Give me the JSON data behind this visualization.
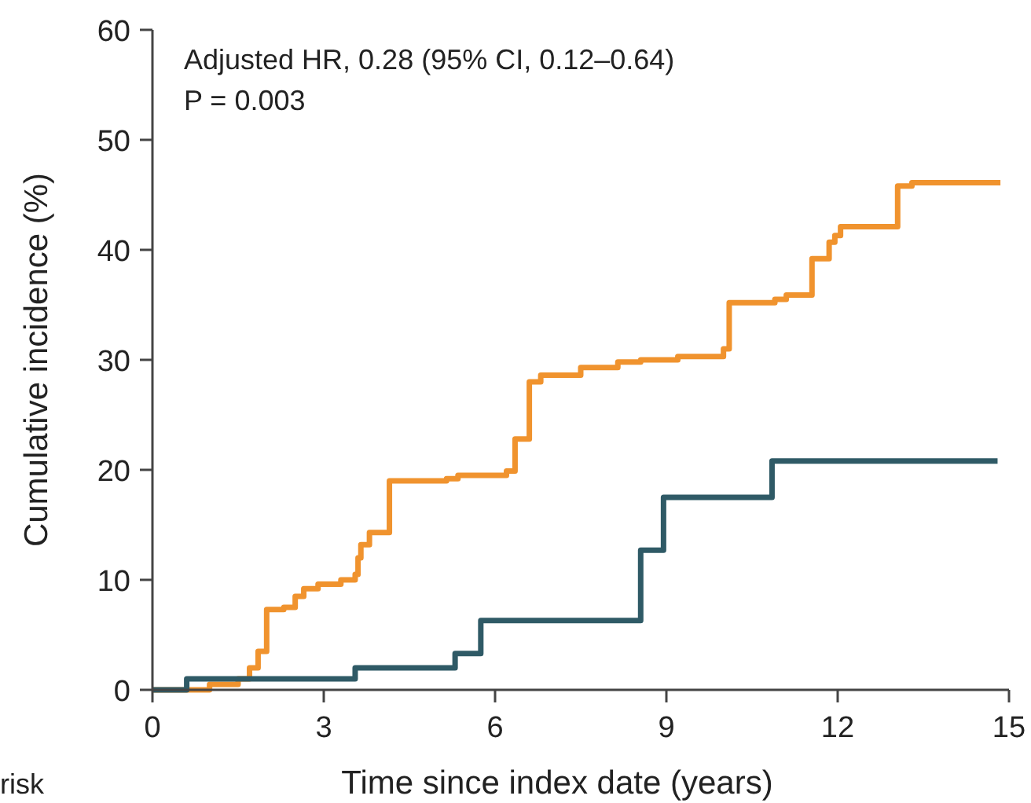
{
  "chart_data": {
    "type": "step",
    "xlabel": "Time since index date (years)",
    "ylabel": "Cumulative incidence (%)",
    "annotations": [
      "Adjusted HR, 0.28 (95% CI, 0.12–0.64)",
      "P = 0.003",
      "risk"
    ],
    "xlim": [
      0,
      15
    ],
    "xticks": [
      0,
      3,
      6,
      9,
      12,
      15
    ],
    "ylim": [
      0,
      60
    ],
    "yticks": [
      0,
      10,
      20,
      30,
      40,
      50,
      60
    ],
    "grid": false,
    "line_style": "solid",
    "marker": "none",
    "series": [
      {
        "color": "#f0932e",
        "x": [
          0,
          1.0,
          1.5,
          1.7,
          1.85,
          2.0,
          2.3,
          2.5,
          2.65,
          2.9,
          3.3,
          3.55,
          3.6,
          3.65,
          3.8,
          4.15,
          5.15,
          5.35,
          6.2,
          6.35,
          6.6,
          6.8,
          7.5,
          8.15,
          8.55,
          9.2,
          10.0,
          10.1,
          10.9,
          11.1,
          11.55,
          11.85,
          11.95,
          12.05,
          13.05,
          13.3,
          14.85
        ],
        "values": [
          0,
          0.5,
          1.0,
          2.0,
          3.5,
          7.3,
          7.5,
          8.5,
          9.2,
          9.6,
          10.0,
          10.5,
          12.0,
          13.2,
          14.3,
          19.0,
          19.2,
          19.5,
          19.9,
          22.8,
          28.0,
          28.6,
          29.3,
          29.8,
          30.0,
          30.3,
          31.0,
          35.2,
          35.5,
          35.9,
          39.2,
          40.7,
          41.3,
          42.1,
          45.8,
          46.1,
          46.1
        ]
      },
      {
        "color": "#2f5a66",
        "x": [
          0,
          0.6,
          3.55,
          5.3,
          5.75,
          8.55,
          8.95,
          10.85,
          14.8
        ],
        "values": [
          0,
          1.0,
          2.0,
          3.3,
          6.3,
          12.7,
          17.5,
          20.8,
          20.8
        ]
      }
    ]
  }
}
